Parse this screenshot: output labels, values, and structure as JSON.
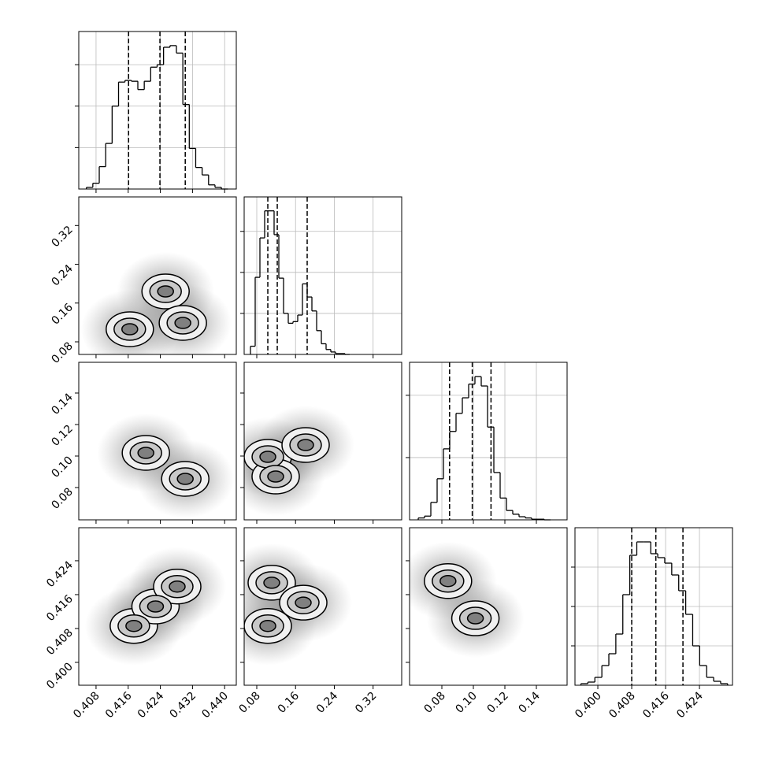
{
  "chart_data": {
    "type": "corner",
    "params": [
      {
        "lim": [
          0.4037,
          0.4429
        ],
        "ticks": [
          0.408,
          0.416,
          0.424,
          0.432,
          {
            "value": 0.44,
            "label": "0.440"
          }
        ]
      },
      {
        "lim": [
          0.054,
          0.379
        ],
        "ticks": [
          0.08,
          0.16,
          0.24,
          0.32
        ]
      },
      {
        "lim": [
          0.0595,
          0.1595
        ],
        "ticks": [
          0.08,
          {
            "value": 0.1,
            "label": "0.10"
          },
          0.12,
          0.14
        ]
      },
      {
        "lim": [
          0.3946,
          0.4318
        ],
        "ticks": [
          {
            "value": 0.4,
            "label": "0.400"
          },
          0.408,
          0.416,
          0.424
        ]
      }
    ],
    "histograms": [
      {
        "bins": [
          0.4056,
          0.4072,
          0.4088,
          0.4104,
          0.412,
          0.4136,
          0.4152,
          0.4168,
          0.4184,
          0.42,
          0.4216,
          0.4232,
          0.4248,
          0.4264,
          0.428,
          0.4296,
          0.4312,
          0.4328,
          0.4344,
          0.436,
          0.4376,
          0.4392,
          0.4408
        ],
        "counts": [
          20,
          70,
          270,
          550,
          1000,
          1290,
          1310,
          1300,
          1200,
          1300,
          1470,
          1500,
          1710,
          1730,
          1640,
          1020,
          490,
          260,
          170,
          50,
          20,
          0
        ],
        "ylim": [
          0,
          1900
        ],
        "yticks": [
          500,
          1000,
          1500
        ],
        "quantiles": [
          0.4161,
          0.4239,
          0.4302
        ]
      },
      {
        "bins": [
          0.067,
          0.07675,
          0.0865,
          0.09625,
          0.106,
          0.11575,
          0.1255,
          0.13525,
          0.145,
          0.15475,
          0.1645,
          0.17425,
          0.184,
          0.19375,
          0.2035,
          0.21325,
          0.223,
          0.23275,
          0.2425,
          0.25225,
          0.262,
          0.27175
        ],
        "counts": [
          100,
          940,
          1420,
          1750,
          1750,
          1460,
          930,
          500,
          380,
          400,
          480,
          860,
          700,
          530,
          290,
          130,
          60,
          30,
          10,
          10,
          0
        ],
        "ylim": [
          0,
          1920
        ],
        "yticks": [
          500,
          1000,
          1500
        ],
        "quantiles": [
          0.1028,
          0.1223,
          0.184
        ]
      },
      {
        "bins": [
          0.065,
          0.069,
          0.073,
          0.077,
          0.081,
          0.085,
          0.089,
          0.093,
          0.097,
          0.101,
          0.105,
          0.109,
          0.113,
          0.117,
          0.121,
          0.125,
          0.129,
          0.133,
          0.137,
          0.141,
          0.145,
          0.149
        ],
        "counts": [
          30,
          60,
          280,
          660,
          1140,
          1420,
          1710,
          1960,
          2180,
          2300,
          2150,
          1490,
          760,
          350,
          150,
          90,
          50,
          30,
          10,
          10,
          0
        ],
        "ylim": [
          0,
          2530
        ],
        "yticks": [
          1000,
          2000
        ],
        "quantiles": [
          0.0849,
          0.0993,
          0.1112
        ]
      },
      {
        "bins": [
          0.396,
          0.39765,
          0.3993,
          0.40095,
          0.4026,
          0.40425,
          0.4059,
          0.40755,
          0.4092,
          0.41085,
          0.4125,
          0.41415,
          0.4158,
          0.41745,
          0.4191,
          0.42075,
          0.4224,
          0.42405,
          0.4257,
          0.42735,
          0.429,
          0.43065
        ],
        "counts": [
          20,
          40,
          100,
          250,
          400,
          650,
          1150,
          1650,
          1820,
          1820,
          1670,
          1620,
          1550,
          1400,
          1200,
          900,
          500,
          250,
          100,
          50,
          20
        ],
        "ylim": [
          0,
          2000
        ],
        "yticks": [
          500,
          1000,
          1500
        ],
        "quantiles": [
          0.408,
          0.4137,
          0.4201
        ]
      }
    ],
    "panels": [
      {
        "x": [
          0.4164,
          0.4253,
          0.4296
        ],
        "y": [
          0.106,
          0.184,
          0.119
        ]
      },
      {
        "x": [
          0.4204,
          0.4302
        ],
        "y": [
          0.102,
          0.0855
        ]
      },
      {
        "x": [
          0.1028,
          0.119,
          0.1808
        ],
        "y": [
          0.0995,
          0.087,
          0.107
        ]
      },
      {
        "x": [
          0.4174,
          0.4228,
          0.4282
        ],
        "y": [
          0.4086,
          0.4132,
          0.4179
        ]
      },
      {
        "x": [
          0.1109,
          0.1028,
          0.1759
        ],
        "y": [
          0.4188,
          0.4086,
          0.4141
        ]
      },
      {
        "x": [
          0.0839,
          0.1013
        ],
        "y": [
          0.4192,
          0.4104
        ]
      }
    ],
    "grid": true,
    "color": "#000000"
  }
}
